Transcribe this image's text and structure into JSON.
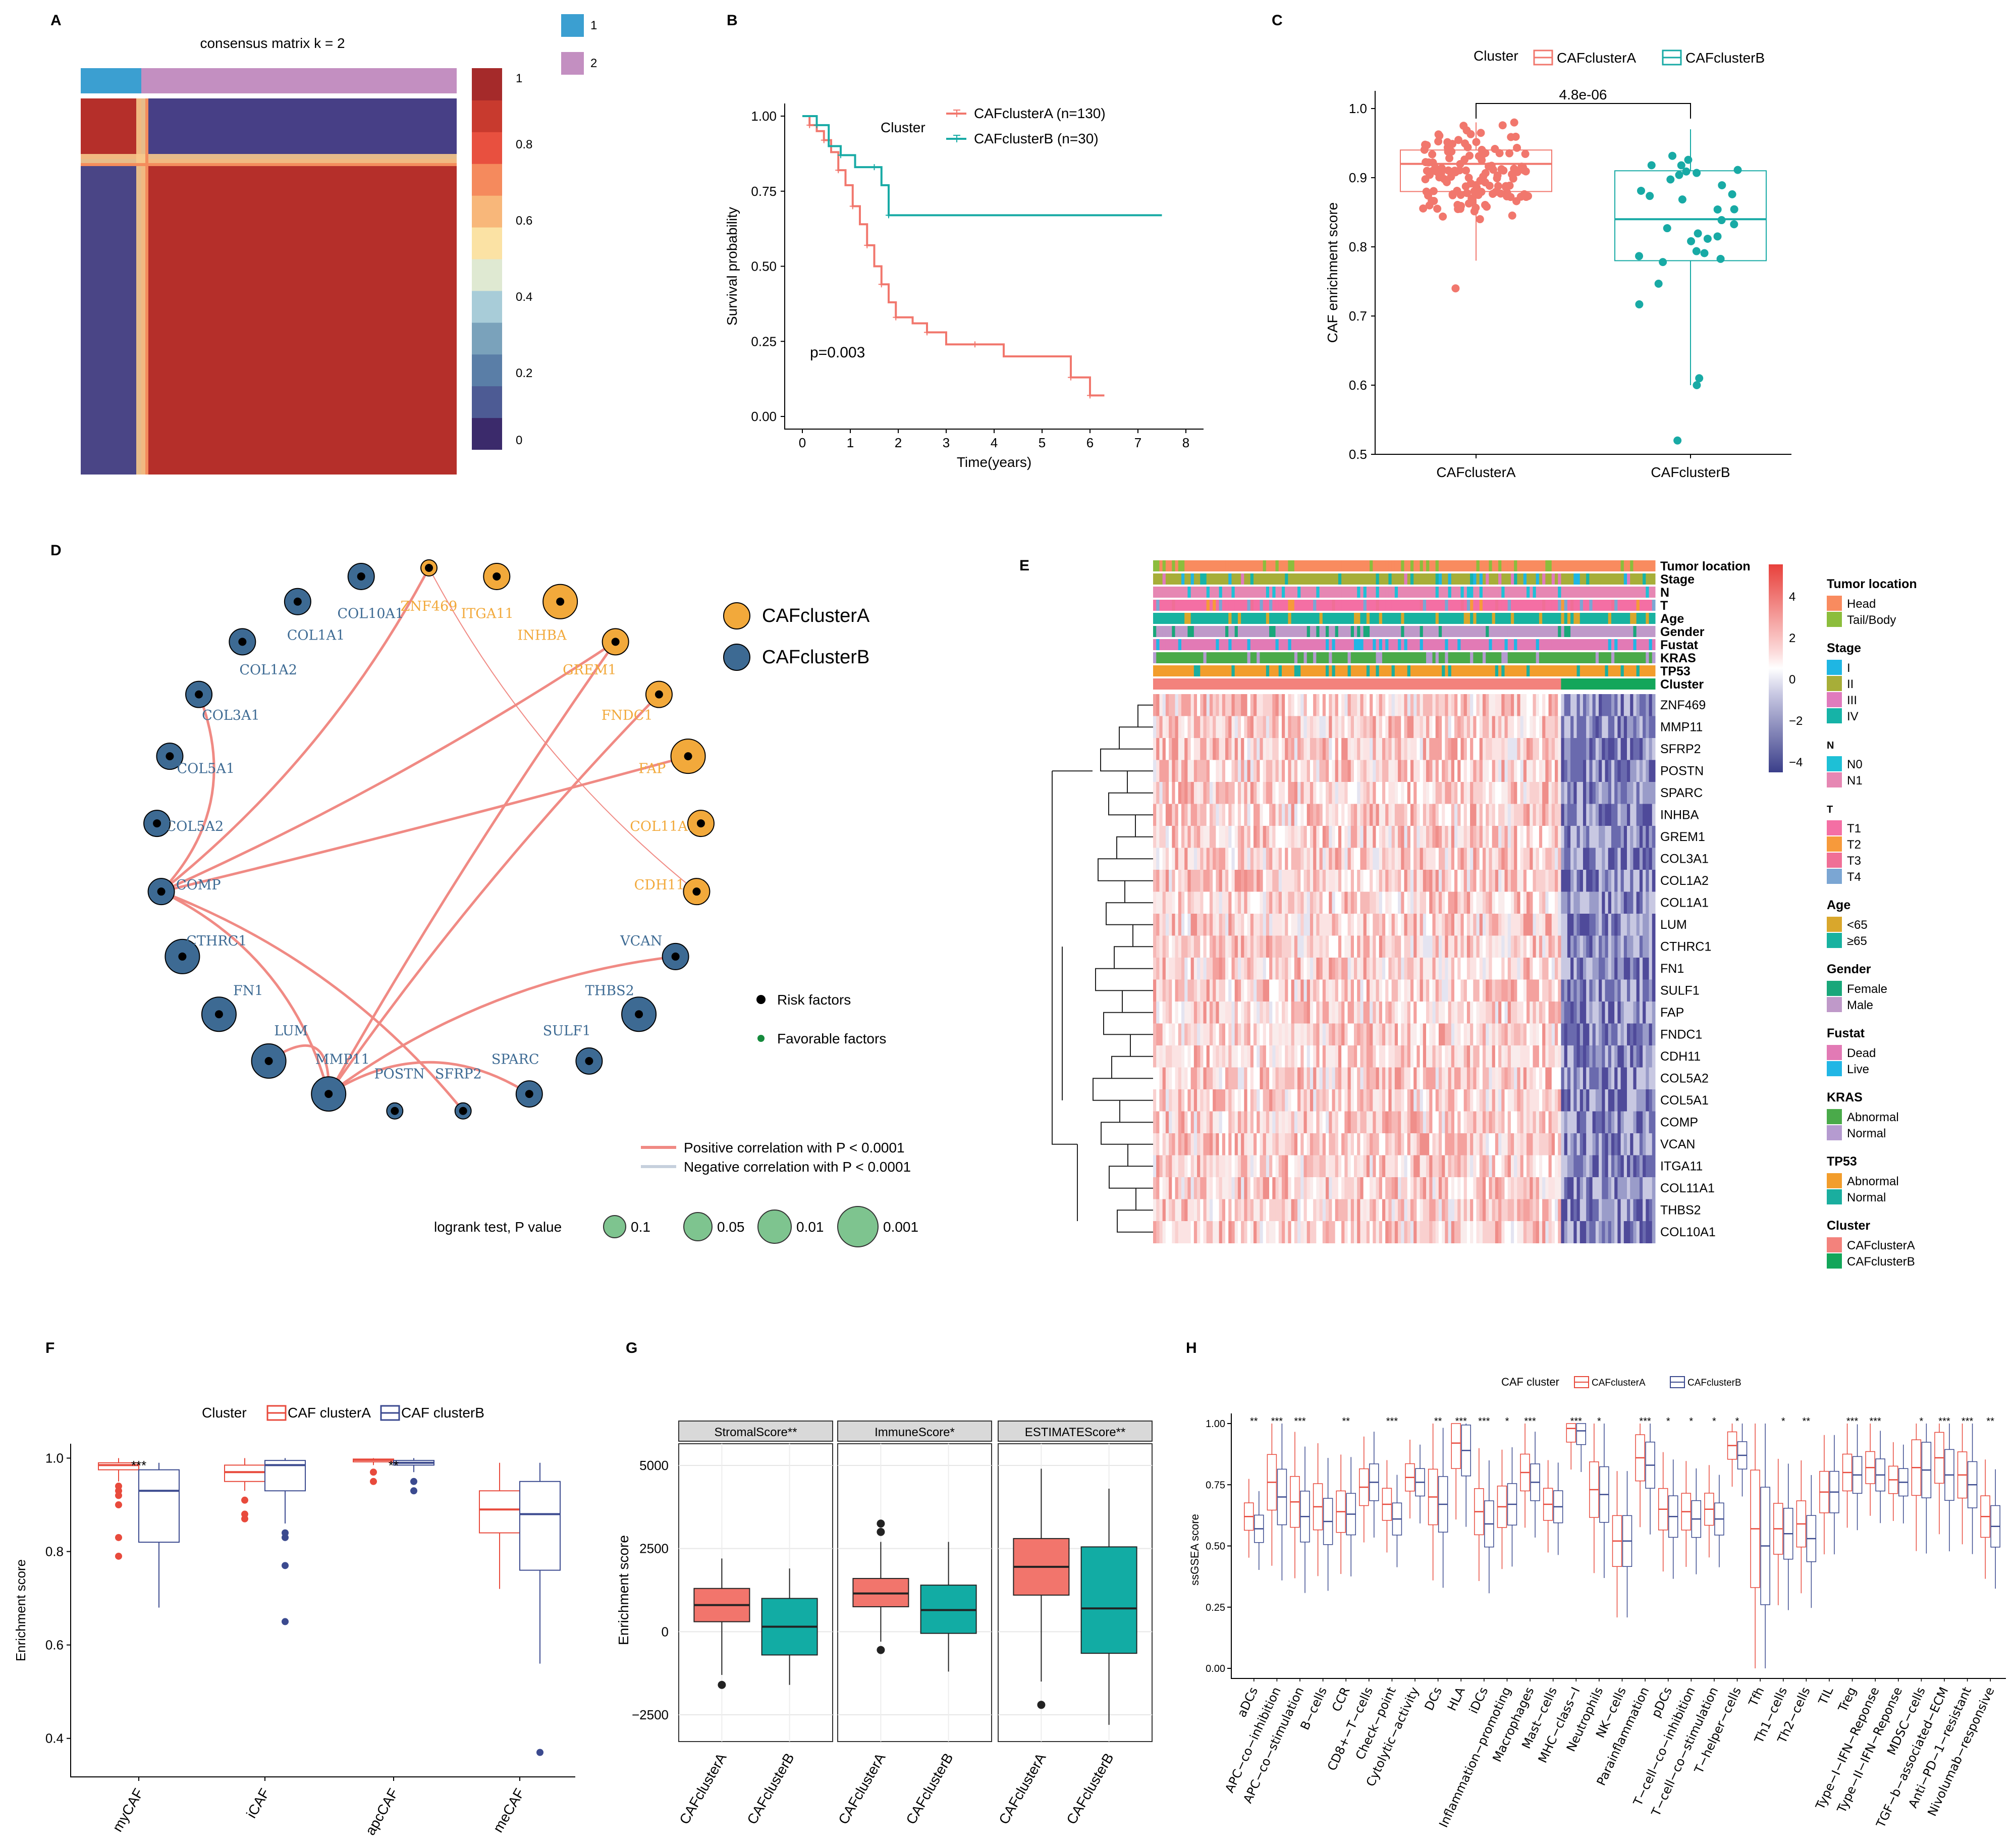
{
  "figure_title": "",
  "chart_data": [
    {
      "panel": "A",
      "type": "heatmap",
      "title": "consensus matrix k =  2",
      "cluster_legend": [
        {
          "label": "1",
          "color": "#3b9fd1"
        },
        {
          "label": "2",
          "color": "#c38fc1"
        }
      ],
      "colorbar_ticks": [
        "0",
        "0.2",
        "0.4",
        "0.6",
        "0.8",
        "1"
      ],
      "colorbar_colors": [
        "#3b2a6b",
        "#4d5b94",
        "#5a7ea7",
        "#7aa2bb",
        "#a8ccd8",
        "#dfe9d2",
        "#fbe2a4",
        "#f8b77a",
        "#f58a5d",
        "#e8503f",
        "#c83a2e",
        "#a52a2a"
      ],
      "clusters": {
        "1": 30,
        "2": 130
      }
    },
    {
      "panel": "B",
      "type": "line",
      "title": "",
      "xlabel": "Time(years)",
      "ylabel": "Survival probability",
      "xlim": [
        0,
        8
      ],
      "ylim": [
        0,
        1
      ],
      "x_ticks": [
        "0",
        "1",
        "2",
        "3",
        "4",
        "5",
        "6",
        "7",
        "8"
      ],
      "y_ticks": [
        "0.00",
        "0.25",
        "0.50",
        "0.75",
        "1.00"
      ],
      "legend_title": "Cluster",
      "annotation": "p=0.003",
      "series": [
        {
          "name": "CAFclusterA (n=130)",
          "color": "#f1776d",
          "x": [
            0,
            0.15,
            0.3,
            0.45,
            0.6,
            0.75,
            0.9,
            1.05,
            1.2,
            1.35,
            1.5,
            1.65,
            1.8,
            1.95,
            2.3,
            2.6,
            3.0,
            3.6,
            4.2,
            5.6,
            5.8,
            6.0,
            6.3
          ],
          "y": [
            1.0,
            0.97,
            0.95,
            0.92,
            0.88,
            0.82,
            0.77,
            0.7,
            0.64,
            0.57,
            0.5,
            0.44,
            0.38,
            0.33,
            0.31,
            0.28,
            0.24,
            0.24,
            0.2,
            0.13,
            0.13,
            0.07,
            0.07
          ]
        },
        {
          "name": "CAFclusterB (n=30)",
          "color": "#18aaa5",
          "x": [
            0,
            0.3,
            0.55,
            0.8,
            1.1,
            1.5,
            1.65,
            1.8,
            7.5
          ],
          "y": [
            1.0,
            0.97,
            0.9,
            0.87,
            0.83,
            0.83,
            0.77,
            0.67,
            0.67
          ]
        }
      ]
    },
    {
      "panel": "C",
      "type": "box",
      "title": "",
      "xlabel": "",
      "ylabel": "CAF enrichment score",
      "ylim": [
        0.5,
        1.0
      ],
      "y_ticks": [
        "0.5",
        "0.6",
        "0.7",
        "0.8",
        "0.9",
        "1.0"
      ],
      "legend_title": "Cluster",
      "pvalue": "4.8e-06",
      "categories": [
        "CAFclusterA",
        "CAFclusterB"
      ],
      "series": [
        {
          "name": "CAFclusterA",
          "color": "#f1776d",
          "min": 0.78,
          "q1": 0.88,
          "median": 0.92,
          "q3": 0.94,
          "max": 0.98,
          "outliers": [
            0.74
          ]
        },
        {
          "name": "CAFclusterB",
          "color": "#18aaa5",
          "min": 0.6,
          "q1": 0.78,
          "median": 0.84,
          "q3": 0.91,
          "max": 0.97,
          "outliers": [
            0.52,
            0.6,
            0.61
          ]
        }
      ]
    },
    {
      "panel": "D",
      "type": "network",
      "legend_clusters": [
        {
          "label": "CAFclusterA",
          "color": "#f2a93b"
        },
        {
          "label": "CAFclusterB",
          "color": "#3d6a93"
        }
      ],
      "factor_legend": [
        "Risk factors",
        "Favorable factors"
      ],
      "edge_legend": [
        "Positive correlation with P < 0.0001",
        "Negative correlation with P < 0.0001"
      ],
      "size_legend_title": "logrank test, P value",
      "size_legend": [
        "0.1",
        "0.05",
        "0.01",
        "0.001"
      ],
      "nodes": [
        {
          "label": "ZNF469",
          "cluster": "A",
          "size": 1
        },
        {
          "label": "ITGA11",
          "cluster": "A",
          "size": 2
        },
        {
          "label": "INHBA",
          "cluster": "A",
          "size": 3
        },
        {
          "label": "GREM1",
          "cluster": "A",
          "size": 2
        },
        {
          "label": "FNDC1",
          "cluster": "A",
          "size": 2
        },
        {
          "label": "FAP",
          "cluster": "A",
          "size": 3
        },
        {
          "label": "COL11A1",
          "cluster": "A",
          "size": 2
        },
        {
          "label": "CDH11",
          "cluster": "A",
          "size": 2
        },
        {
          "label": "VCAN",
          "cluster": "B",
          "size": 2
        },
        {
          "label": "THBS2",
          "cluster": "B",
          "size": 3
        },
        {
          "label": "SULF1",
          "cluster": "B",
          "size": 2
        },
        {
          "label": "SPARC",
          "cluster": "B",
          "size": 2
        },
        {
          "label": "SFRP2",
          "cluster": "B",
          "size": 1
        },
        {
          "label": "POSTN",
          "cluster": "B",
          "size": 1
        },
        {
          "label": "MMP11",
          "cluster": "B",
          "size": 3
        },
        {
          "label": "LUM",
          "cluster": "B",
          "size": 3
        },
        {
          "label": "FN1",
          "cluster": "B",
          "size": 3
        },
        {
          "label": "CTHRC1",
          "cluster": "B",
          "size": 3
        },
        {
          "label": "COMP",
          "cluster": "B",
          "size": 2
        },
        {
          "label": "COL5A2",
          "cluster": "B",
          "size": 2
        },
        {
          "label": "COL5A1",
          "cluster": "B",
          "size": 2
        },
        {
          "label": "COL3A1",
          "cluster": "B",
          "size": 2
        },
        {
          "label": "COL1A2",
          "cluster": "B",
          "size": 2
        },
        {
          "label": "COL1A1",
          "cluster": "B",
          "size": 2
        },
        {
          "label": "COL10A1",
          "cluster": "B",
          "size": 2
        }
      ],
      "edges": [
        [
          "COMP",
          "ZNF469"
        ],
        [
          "COMP",
          "GREM1"
        ],
        [
          "COMP",
          "FAP"
        ],
        [
          "COMP",
          "COL3A1"
        ],
        [
          "COMP",
          "MMP11"
        ],
        [
          "COMP",
          "SFRP2"
        ],
        [
          "MMP11",
          "FNDC1"
        ],
        [
          "MMP11",
          "GREM1"
        ],
        [
          "MMP11",
          "VCAN"
        ],
        [
          "MMP11",
          "LUM"
        ],
        [
          "MMP11",
          "SPARC"
        ],
        [
          "ZNF469",
          "CDH11"
        ]
      ]
    },
    {
      "panel": "E",
      "type": "heatmap",
      "annotation_rows": [
        "Tumor location",
        "Stage",
        "N",
        "T",
        "Age",
        "Gender",
        "Fustat",
        "KRAS",
        "TP53",
        "Cluster"
      ],
      "genes": [
        "ZNF469",
        "MMP11",
        "SFRP2",
        "POSTN",
        "SPARC",
        "INHBA",
        "GREM1",
        "COL3A1",
        "COL1A2",
        "COL1A1",
        "LUM",
        "CTHRC1",
        "FN1",
        "SULF1",
        "FAP",
        "FNDC1",
        "CDH11",
        "COL5A2",
        "COL5A1",
        "COMP",
        "VCAN",
        "ITGA11",
        "COL11A1",
        "THBS2",
        "COL10A1"
      ],
      "colorbar_ticks": [
        "4",
        "2",
        "0",
        "−2",
        "−4"
      ],
      "legend": [
        {
          "title": "Tumor location",
          "items": [
            {
              "label": "Head",
              "color": "#f98b5f"
            },
            {
              "label": "Tail/Body",
              "color": "#8cbd3c"
            }
          ]
        },
        {
          "title": "Stage",
          "items": [
            {
              "label": "I",
              "color": "#1fb6e3"
            },
            {
              "label": "II",
              "color": "#a7ae38"
            },
            {
              "label": "III",
              "color": "#e07bbd"
            },
            {
              "label": "IV",
              "color": "#16b3a7"
            }
          ]
        },
        {
          "title": "N",
          "items": [
            {
              "label": "N0",
              "color": "#1ec0d6"
            },
            {
              "label": "N1",
              "color": "#e687b3"
            }
          ]
        },
        {
          "title": "T",
          "items": [
            {
              "label": "T1",
              "color": "#f46fa4"
            },
            {
              "label": "T2",
              "color": "#f79a3b"
            },
            {
              "label": "T3",
              "color": "#f06f96"
            },
            {
              "label": "T4",
              "color": "#7ba6d3"
            }
          ]
        },
        {
          "title": "Age",
          "items": [
            {
              "label": "<65",
              "color": "#d9a72c"
            },
            {
              "label": "≥65",
              "color": "#18b2a0"
            }
          ]
        },
        {
          "title": "Gender",
          "items": [
            {
              "label": "Female",
              "color": "#19a77a"
            },
            {
              "label": "Male",
              "color": "#bf99c9"
            }
          ]
        },
        {
          "title": "Fustat",
          "items": [
            {
              "label": "Dead",
              "color": "#e27ab5"
            },
            {
              "label": "Live",
              "color": "#21b6e5"
            }
          ]
        },
        {
          "title": "KRAS",
          "items": [
            {
              "label": "Abnormal",
              "color": "#4aaa4a"
            },
            {
              "label": "Normal",
              "color": "#b59bd0"
            }
          ]
        },
        {
          "title": "TP53",
          "items": [
            {
              "label": "Abnormal",
              "color": "#f29d2c"
            },
            {
              "label": "Normal",
              "color": "#1aae9f"
            }
          ]
        },
        {
          "title": "Cluster",
          "items": [
            {
              "label": "CAFclusterA",
              "color": "#f3827c"
            },
            {
              "label": "CAFclusterB",
              "color": "#13a65a"
            }
          ]
        }
      ]
    },
    {
      "panel": "F",
      "type": "box",
      "ylabel": "Enrichment score",
      "ylim": [
        0.35,
        1.02
      ],
      "y_ticks": [
        "0.4",
        "0.6",
        "0.8",
        "1.0"
      ],
      "legend_title": "Cluster",
      "categories": [
        "myCAF",
        "iCAF",
        "apcCAF",
        "meCAF"
      ],
      "significance": [
        "***",
        "",
        "**",
        ""
      ],
      "series": [
        {
          "name": "CAF clusterA",
          "color": "#e84a3c",
          "boxes": [
            {
              "min": 0.95,
              "q1": 0.975,
              "median": 0.985,
              "q3": 0.99,
              "max": 1.0,
              "outliers": [
                0.94,
                0.93,
                0.92,
                0.9,
                0.83,
                0.79
              ]
            },
            {
              "min": 0.93,
              "q1": 0.95,
              "median": 0.97,
              "q3": 0.985,
              "max": 1.0,
              "outliers": [
                0.91,
                0.88,
                0.87
              ]
            },
            {
              "min": 0.985,
              "q1": 0.992,
              "median": 0.996,
              "q3": 0.998,
              "max": 1.0,
              "outliers": [
                0.97,
                0.95
              ]
            },
            {
              "min": 0.72,
              "q1": 0.84,
              "median": 0.89,
              "q3": 0.93,
              "max": 0.99,
              "outliers": []
            }
          ]
        },
        {
          "name": "CAF clusterB",
          "color": "#3b4a8f",
          "boxes": [
            {
              "min": 0.68,
              "q1": 0.82,
              "median": 0.93,
              "q3": 0.975,
              "max": 0.99,
              "outliers": []
            },
            {
              "min": 0.86,
              "q1": 0.93,
              "median": 0.985,
              "q3": 0.995,
              "max": 1.0,
              "outliers": [
                0.84,
                0.83,
                0.77,
                0.65
              ]
            },
            {
              "min": 0.97,
              "q1": 0.985,
              "median": 0.99,
              "q3": 0.995,
              "max": 1.0,
              "outliers": [
                0.95,
                0.93
              ]
            },
            {
              "min": 0.56,
              "q1": 0.76,
              "median": 0.88,
              "q3": 0.95,
              "max": 0.99,
              "outliers": [
                0.37
              ]
            }
          ]
        }
      ]
    },
    {
      "panel": "G",
      "type": "box",
      "ylabel": "Enrichment score",
      "ylim": [
        -3000,
        5500
      ],
      "y_ticks": [
        "−2500",
        "0",
        "2500",
        "5000"
      ],
      "facets": [
        "StromalScore**",
        "ImmuneScore*",
        "ESTIMATEScore**"
      ],
      "categories": [
        "CAFclusterA",
        "CAFclusterB"
      ],
      "colors": [
        "#f2756c",
        "#12aca4"
      ],
      "boxes": [
        [
          {
            "min": -1300,
            "q1": 300,
            "median": 800,
            "q3": 1300,
            "max": 2200,
            "outliers": [
              -1600
            ]
          },
          {
            "min": -1600,
            "q1": -700,
            "median": 150,
            "q3": 1000,
            "max": 1900,
            "outliers": []
          }
        ],
        [
          {
            "min": -300,
            "q1": 750,
            "median": 1150,
            "q3": 1600,
            "max": 2700,
            "outliers": [
              3250,
              3000,
              -550
            ]
          },
          {
            "min": -1200,
            "q1": -50,
            "median": 650,
            "q3": 1400,
            "max": 2700,
            "outliers": []
          }
        ],
        [
          {
            "min": -1500,
            "q1": 1100,
            "median": 1950,
            "q3": 2800,
            "max": 4900,
            "outliers": [
              -2200
            ]
          },
          {
            "min": -2800,
            "q1": -650,
            "median": 700,
            "q3": 2550,
            "max": 4300,
            "outliers": []
          }
        ]
      ]
    },
    {
      "panel": "H",
      "type": "box",
      "legend_title": "CAF cluster",
      "ylabel": "ssGSEA score",
      "ylim": [
        -0.05,
        1.05
      ],
      "y_ticks": [
        "0.00",
        "0.25",
        "0.50",
        "0.75",
        "1.00"
      ],
      "categories": [
        "aDCs",
        "APC−co−inhibition",
        "APC−co−stimulation",
        "B−cells",
        "CCR",
        "CD8+−T−cells",
        "Check−point",
        "Cytolytic−activity",
        "DCs",
        "HLA",
        "iDCs",
        "Inflammation−promoting",
        "Macrophages",
        "Mast−cells",
        "MHC−class−I",
        "Neutrophils",
        "NK−cells",
        "Parainflammation",
        "pDCs",
        "T−cell−co−inhibition",
        "T−cell−co−stimulation",
        "T−helper−cells",
        "Tfh",
        "Th1−cells",
        "Th2−cells",
        "TIL",
        "Treg",
        "Type−I−IFN−Reponse",
        "Type−II−IFN−Reponse",
        "MDSC−cells",
        "TGF−b−associated−ECM",
        "Anti−PD−1−resistant",
        "Nivolumab−responsive"
      ],
      "significance": [
        "**",
        "***",
        "***",
        "",
        "**",
        "",
        "***",
        "",
        "**",
        "***",
        "***",
        "*",
        "***",
        "",
        "***",
        "*",
        "",
        "***",
        "*",
        "*",
        "*",
        "*",
        "",
        "*",
        "**",
        "",
        "***",
        "***",
        "",
        "*",
        "***",
        "***",
        "**"
      ],
      "series": [
        {
          "name": "CAFclusterA",
          "color": "#e84a3c",
          "medians": [
            0.62,
            0.76,
            0.68,
            0.66,
            0.64,
            0.74,
            0.67,
            0.78,
            0.7,
            0.92,
            0.64,
            0.66,
            0.8,
            0.67,
            0.98,
            0.73,
            0.52,
            0.86,
            0.65,
            0.64,
            0.65,
            0.91,
            0.57,
            0.57,
            0.59,
            0.72,
            0.8,
            0.82,
            0.77,
            0.82,
            0.86,
            0.79,
            0.62
          ]
        },
        {
          "name": "CAFclusterB",
          "color": "#3b4a8f",
          "medians": [
            0.57,
            0.7,
            0.62,
            0.6,
            0.63,
            0.76,
            0.61,
            0.76,
            0.67,
            0.89,
            0.59,
            0.67,
            0.76,
            0.66,
            0.97,
            0.71,
            0.52,
            0.83,
            0.62,
            0.61,
            0.61,
            0.87,
            0.5,
            0.55,
            0.53,
            0.72,
            0.79,
            0.79,
            0.76,
            0.81,
            0.79,
            0.75,
            0.58
          ]
        }
      ]
    }
  ],
  "panel_labels": [
    "A",
    "B",
    "C",
    "D",
    "E",
    "F",
    "G",
    "H"
  ]
}
